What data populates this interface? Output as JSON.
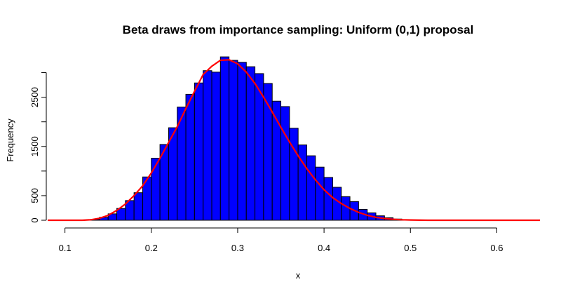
{
  "chart_data": {
    "type": "bar",
    "title": "Beta draws from importance sampling: Uniform (0,1) proposal",
    "xlabel": "x",
    "ylabel": "Frequency",
    "xlim": [
      0.08,
      0.65
    ],
    "ylim": [
      0,
      3250
    ],
    "x_ticks": [
      0.1,
      0.2,
      0.3,
      0.4,
      0.5,
      0.6
    ],
    "x_tick_labels": [
      "0.1",
      "0.2",
      "0.3",
      "0.4",
      "0.5",
      "0.6"
    ],
    "y_ticks": [
      0,
      500,
      1500,
      2500
    ],
    "y_tick_labels": [
      "0",
      "500",
      "1500",
      "2500"
    ],
    "y_axis_top": 3000,
    "bar_color": "#0000ff",
    "curve_color": "#ff0000",
    "bin_width": 0.01,
    "bins_start": [
      0.12,
      0.13,
      0.14,
      0.15,
      0.16,
      0.17,
      0.18,
      0.19,
      0.2,
      0.21,
      0.22,
      0.23,
      0.24,
      0.25,
      0.26,
      0.27,
      0.28,
      0.29,
      0.3,
      0.31,
      0.32,
      0.33,
      0.34,
      0.35,
      0.36,
      0.37,
      0.38,
      0.39,
      0.4,
      0.41,
      0.42,
      0.43,
      0.44,
      0.45,
      0.46,
      0.47,
      0.48,
      0.49,
      0.5
    ],
    "values": [
      5,
      20,
      60,
      130,
      240,
      400,
      560,
      880,
      1260,
      1540,
      1880,
      2300,
      2560,
      2790,
      3040,
      3010,
      3320,
      3250,
      3210,
      3120,
      2980,
      2780,
      2420,
      2310,
      1870,
      1530,
      1310,
      1080,
      870,
      670,
      480,
      380,
      220,
      150,
      90,
      50,
      25,
      10,
      3
    ],
    "series": [
      {
        "name": "",
        "type": "line",
        "x": [
          0.08,
          0.1,
          0.12,
          0.13,
          0.14,
          0.15,
          0.16,
          0.17,
          0.18,
          0.19,
          0.2,
          0.21,
          0.22,
          0.23,
          0.24,
          0.25,
          0.26,
          0.27,
          0.28,
          0.29,
          0.3,
          0.31,
          0.32,
          0.33,
          0.34,
          0.35,
          0.36,
          0.37,
          0.38,
          0.39,
          0.4,
          0.41,
          0.42,
          0.43,
          0.44,
          0.45,
          0.46,
          0.47,
          0.48,
          0.49,
          0.5,
          0.52,
          0.55,
          0.6,
          0.65
        ],
        "y": [
          0,
          0,
          0,
          10,
          40,
          100,
          200,
          330,
          500,
          700,
          960,
          1260,
          1580,
          1900,
          2270,
          2620,
          2960,
          3130,
          3250,
          3260,
          3180,
          3010,
          2780,
          2500,
          2200,
          1890,
          1590,
          1310,
          1050,
          820,
          620,
          460,
          340,
          240,
          160,
          100,
          60,
          35,
          20,
          10,
          5,
          0,
          0,
          0,
          0
        ]
      }
    ]
  }
}
